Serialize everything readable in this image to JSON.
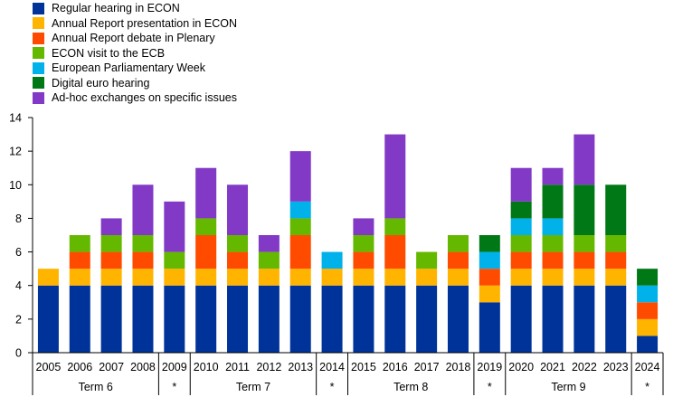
{
  "chart_data": {
    "type": "bar",
    "stacked": true,
    "categories": [
      "2005",
      "2006",
      "2007",
      "2008",
      "2009",
      "2010",
      "2011",
      "2012",
      "2013",
      "2014",
      "2015",
      "2016",
      "2017",
      "2018",
      "2019",
      "2020",
      "2021",
      "2022",
      "2023",
      "2024"
    ],
    "series": [
      {
        "name": "Regular hearing in ECON",
        "color": "#003399",
        "values": [
          4,
          4,
          4,
          4,
          4,
          4,
          4,
          4,
          4,
          4,
          4,
          4,
          4,
          4,
          3,
          4,
          4,
          4,
          4,
          1
        ]
      },
      {
        "name": "Annual Report presentation in ECON",
        "color": "#FFB400",
        "values": [
          1,
          1,
          1,
          1,
          1,
          1,
          1,
          1,
          1,
          1,
          1,
          1,
          1,
          1,
          1,
          1,
          1,
          1,
          1,
          1
        ]
      },
      {
        "name": "Annual Report debate in Plenary",
        "color": "#FF4B00",
        "values": [
          0,
          1,
          1,
          1,
          0,
          2,
          1,
          0,
          2,
          0,
          1,
          2,
          0,
          1,
          1,
          1,
          1,
          1,
          1,
          1
        ]
      },
      {
        "name": "ECON visit to the ECB",
        "color": "#65B800",
        "values": [
          0,
          1,
          1,
          1,
          1,
          1,
          1,
          1,
          1,
          0,
          1,
          1,
          1,
          1,
          0,
          1,
          1,
          1,
          1,
          0
        ]
      },
      {
        "name": "European Parliamentary Week",
        "color": "#00B1EA",
        "values": [
          0,
          0,
          0,
          0,
          0,
          0,
          0,
          0,
          1,
          1,
          0,
          0,
          0,
          0,
          1,
          1,
          1,
          0,
          0,
          1
        ]
      },
      {
        "name": "Digital euro hearing",
        "color": "#007816",
        "values": [
          0,
          0,
          0,
          0,
          0,
          0,
          0,
          0,
          0,
          0,
          0,
          0,
          0,
          0,
          1,
          1,
          2,
          3,
          3,
          1
        ]
      },
      {
        "name": "Ad-hoc exchanges on specific issues",
        "color": "#8139C6",
        "values": [
          0,
          0,
          1,
          3,
          3,
          3,
          3,
          1,
          3,
          0,
          1,
          5,
          0,
          0,
          0,
          2,
          1,
          3,
          0,
          0
        ]
      }
    ],
    "ylim": [
      0,
      14
    ],
    "yticks": [
      0,
      2,
      4,
      6,
      8,
      10,
      12,
      14
    ],
    "legend_position": "top-left",
    "grid": false,
    "groups": [
      {
        "label": "Term 6",
        "from": 0,
        "to": 3
      },
      {
        "label": "*",
        "from": 4,
        "to": 4
      },
      {
        "label": "Term 7",
        "from": 5,
        "to": 8
      },
      {
        "label": "*",
        "from": 9,
        "to": 9
      },
      {
        "label": "Term 8",
        "from": 10,
        "to": 13
      },
      {
        "label": "*",
        "from": 14,
        "to": 14
      },
      {
        "label": "Term 9",
        "from": 15,
        "to": 18
      },
      {
        "label": "*",
        "from": 19,
        "to": 19
      }
    ]
  }
}
